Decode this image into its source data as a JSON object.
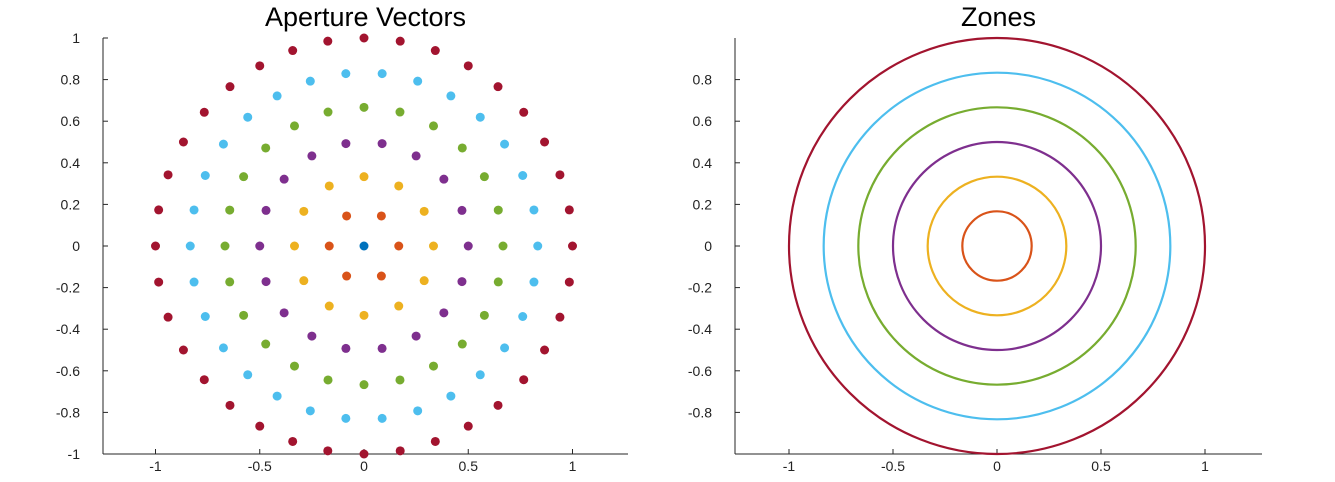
{
  "chart_data": [
    {
      "type": "scatter",
      "title": "Aperture Vectors",
      "xlabel": "",
      "ylabel": "",
      "xlim": [
        -1.25,
        1.25
      ],
      "ylim": [
        -1,
        1
      ],
      "xticks": [
        "-1",
        "-0.5",
        "0",
        "0.5",
        "1"
      ],
      "yticks": [
        "-1",
        "-0.8",
        "-0.6",
        "-0.4",
        "-0.2",
        "0",
        "0.2",
        "0.4",
        "0.6",
        "0.8",
        "1"
      ],
      "grid": false,
      "legend": "none",
      "series": [
        {
          "ring": 0,
          "radius": 0,
          "points": 1,
          "color": "#0072BD"
        },
        {
          "ring": 1,
          "radius": 0.1667,
          "points": 6,
          "color": "#D95319"
        },
        {
          "ring": 2,
          "radius": 0.3333,
          "points": 12,
          "color": "#EDB120"
        },
        {
          "ring": 3,
          "radius": 0.5,
          "points": 18,
          "color": "#7E2F8E"
        },
        {
          "ring": 4,
          "radius": 0.6667,
          "points": 24,
          "color": "#77AC30"
        },
        {
          "ring": 5,
          "radius": 0.8333,
          "points": 30,
          "color": "#4DBEEE"
        },
        {
          "ring": 6,
          "radius": 1.0,
          "points": 36,
          "color": "#A2142F"
        }
      ]
    },
    {
      "type": "line",
      "title": "Zones",
      "xlabel": "",
      "ylabel": "",
      "xlim": [
        -1.25,
        1.25
      ],
      "ylim": [
        -1,
        1
      ],
      "xticks": [
        "-1",
        "-0.5",
        "0",
        "0.5",
        "1"
      ],
      "yticks": [
        "-0.8",
        "-0.6",
        "-0.4",
        "-0.2",
        "0",
        "0.2",
        "0.4",
        "0.6",
        "0.8"
      ],
      "grid": false,
      "legend": "none",
      "series": [
        {
          "shape": "circle",
          "radius": 0.1667,
          "color": "#D95319"
        },
        {
          "shape": "circle",
          "radius": 0.3333,
          "color": "#EDB120"
        },
        {
          "shape": "circle",
          "radius": 0.5,
          "color": "#7E2F8E"
        },
        {
          "shape": "circle",
          "radius": 0.6667,
          "color": "#77AC30"
        },
        {
          "shape": "circle",
          "radius": 0.8333,
          "color": "#4DBEEE"
        },
        {
          "shape": "circle",
          "radius": 1.0,
          "color": "#A2142F"
        }
      ]
    }
  ]
}
